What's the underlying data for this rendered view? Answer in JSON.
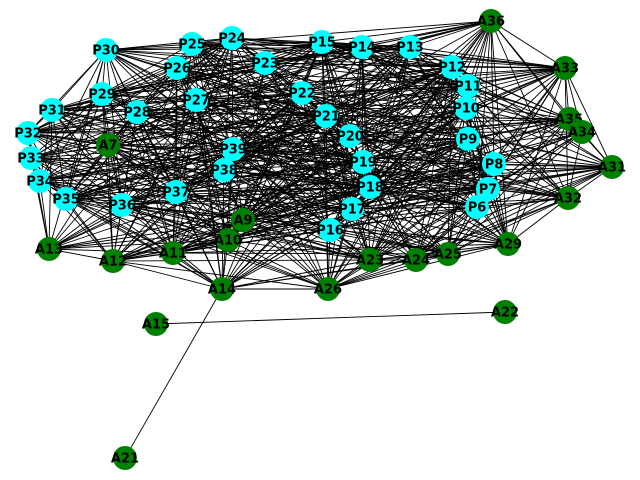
{
  "colors": {
    "background": "#ffffff",
    "edge": "#000000",
    "p_node": "#00ffff",
    "a_node": "#008000",
    "label": "#000000"
  },
  "graph": {
    "nodes": [
      {
        "id": "P30",
        "group": "P"
      },
      {
        "id": "P25",
        "group": "P"
      },
      {
        "id": "P24",
        "group": "P"
      },
      {
        "id": "P23",
        "group": "P"
      },
      {
        "id": "P15",
        "group": "P"
      },
      {
        "id": "P14",
        "group": "P"
      },
      {
        "id": "P13",
        "group": "P"
      },
      {
        "id": "P12",
        "group": "P"
      },
      {
        "id": "P11",
        "group": "P"
      },
      {
        "id": "P10",
        "group": "P"
      },
      {
        "id": "P9",
        "group": "P"
      },
      {
        "id": "P8",
        "group": "P"
      },
      {
        "id": "P7",
        "group": "P"
      },
      {
        "id": "P6",
        "group": "P"
      },
      {
        "id": "P26",
        "group": "P"
      },
      {
        "id": "P29",
        "group": "P"
      },
      {
        "id": "P27",
        "group": "P"
      },
      {
        "id": "P22",
        "group": "P"
      },
      {
        "id": "P21",
        "group": "P"
      },
      {
        "id": "P20",
        "group": "P"
      },
      {
        "id": "P19",
        "group": "P"
      },
      {
        "id": "P18",
        "group": "P"
      },
      {
        "id": "P17",
        "group": "P"
      },
      {
        "id": "P16",
        "group": "P"
      },
      {
        "id": "P28",
        "group": "P"
      },
      {
        "id": "P31",
        "group": "P"
      },
      {
        "id": "P32",
        "group": "P"
      },
      {
        "id": "P33",
        "group": "P"
      },
      {
        "id": "P34",
        "group": "P"
      },
      {
        "id": "P35",
        "group": "P"
      },
      {
        "id": "P36",
        "group": "P"
      },
      {
        "id": "P37",
        "group": "P"
      },
      {
        "id": "P38",
        "group": "P"
      },
      {
        "id": "P39",
        "group": "P"
      },
      {
        "id": "A36",
        "group": "A"
      },
      {
        "id": "A33",
        "group": "A"
      },
      {
        "id": "A35",
        "group": "A"
      },
      {
        "id": "A34",
        "group": "A"
      },
      {
        "id": "A31",
        "group": "A"
      },
      {
        "id": "A32",
        "group": "A"
      },
      {
        "id": "A29",
        "group": "A"
      },
      {
        "id": "A25",
        "group": "A"
      },
      {
        "id": "A24",
        "group": "A"
      },
      {
        "id": "A23",
        "group": "A"
      },
      {
        "id": "A26",
        "group": "A"
      },
      {
        "id": "A14",
        "group": "A"
      },
      {
        "id": "A10",
        "group": "A"
      },
      {
        "id": "A9",
        "group": "A"
      },
      {
        "id": "A11",
        "group": "A"
      },
      {
        "id": "A12",
        "group": "A"
      },
      {
        "id": "A13",
        "group": "A"
      },
      {
        "id": "A7",
        "group": "A"
      },
      {
        "id": "A15",
        "group": "A"
      },
      {
        "id": "A22",
        "group": "A"
      },
      {
        "id": "A21",
        "group": "A"
      }
    ],
    "isolated_edges": [
      [
        "A15",
        "A22"
      ],
      [
        "A14",
        "A21"
      ]
    ]
  }
}
